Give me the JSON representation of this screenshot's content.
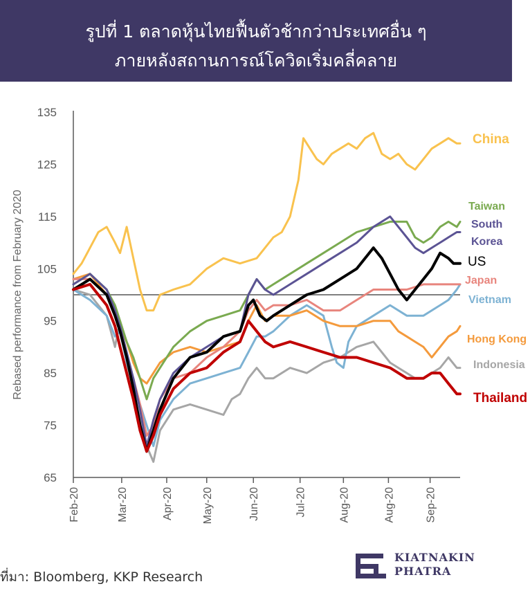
{
  "header": {
    "title_line1": "รูปที่ 1 ตลาดหุ้นไทยฟื้นตัวช้ากว่าประเทศอื่น ๆ",
    "title_line2": "ภายหลังสถานการณ์โควิดเริ่มคลี่คลาย"
  },
  "source": "ที่มา: Bloomberg, KKP Research",
  "logo": {
    "line1": "KIATNAKIN",
    "line2": "PHATRA"
  },
  "colors": {
    "header_bg": "#3f3865",
    "China": "#f9c24e",
    "Taiwan": "#7aaa50",
    "South Korea": "#5b5394",
    "US": "#000000",
    "Japan": "#e8857d",
    "Vietnam": "#7db2d3",
    "Hong Kong": "#f49a3c",
    "Indonesia": "#a6a6a6",
    "Thailand": "#c00000"
  },
  "chart_data": {
    "type": "line",
    "ylabel": "Rebased performance from February 2020",
    "xlabel": "",
    "ylim": [
      65,
      135
    ],
    "yticks": [
      65,
      75,
      85,
      95,
      105,
      115,
      125,
      135
    ],
    "xlim": [
      0,
      232
    ],
    "xticks": [
      {
        "x": 0,
        "label": "Feb-20"
      },
      {
        "x": 29,
        "label": "Mar-20"
      },
      {
        "x": 56,
        "label": "Apr-20"
      },
      {
        "x": 80,
        "label": "May-20"
      },
      {
        "x": 108,
        "label": "Jun-20"
      },
      {
        "x": 136,
        "label": "Jul-20"
      },
      {
        "x": 162,
        "label": "Aug-20"
      },
      {
        "x": 189,
        "label": "Aug-20"
      },
      {
        "x": 214,
        "label": "Sep-20"
      }
    ],
    "reference_line": 100,
    "grid": false,
    "legend": "right, labels at line ends",
    "series": [
      {
        "name": "Indonesia",
        "label_lines": [
          "Indonesia"
        ],
        "x": [
          0,
          10,
          20,
          25,
          28,
          32,
          36,
          40,
          44,
          48,
          52,
          60,
          70,
          80,
          90,
          95,
          100,
          105,
          110,
          115,
          120,
          130,
          140,
          150,
          160,
          170,
          180,
          185,
          190,
          195,
          200,
          205,
          210,
          215,
          220,
          225,
          230,
          232
        ],
        "y": [
          101,
          100,
          96,
          90,
          95,
          87,
          82,
          76,
          71,
          68,
          74,
          78,
          79,
          78,
          77,
          80,
          81,
          84,
          86,
          84,
          84,
          86,
          85,
          87,
          88,
          90,
          91,
          89,
          87,
          86,
          85,
          84,
          84,
          85,
          86,
          88,
          86,
          86
        ]
      },
      {
        "name": "Vietnam",
        "label_lines": [
          "Vietnam"
        ],
        "x": [
          0,
          10,
          20,
          25,
          28,
          32,
          36,
          40,
          44,
          48,
          52,
          60,
          70,
          80,
          90,
          100,
          105,
          110,
          115,
          120,
          130,
          140,
          150,
          155,
          158,
          162,
          165,
          170,
          180,
          190,
          200,
          210,
          220,
          225,
          230,
          232
        ],
        "y": [
          101,
          99,
          96,
          92,
          93,
          87,
          83,
          79,
          75,
          71,
          76,
          80,
          83,
          84,
          85,
          86,
          89,
          92,
          92,
          93,
          96,
          98,
          96,
          90,
          87,
          86,
          91,
          94,
          96,
          98,
          96,
          96,
          98,
          99,
          101,
          102
        ]
      },
      {
        "name": "Hong Kong",
        "label_lines": [
          "Hong Kong"
        ],
        "x": [
          0,
          10,
          20,
          25,
          28,
          32,
          36,
          40,
          44,
          48,
          52,
          60,
          70,
          80,
          90,
          100,
          105,
          110,
          115,
          120,
          130,
          140,
          150,
          160,
          170,
          180,
          190,
          195,
          200,
          205,
          210,
          215,
          220,
          225,
          230,
          232
        ],
        "y": [
          103,
          104,
          100,
          97,
          94,
          91,
          87,
          84,
          83,
          85,
          87,
          89,
          90,
          89,
          90,
          91,
          95,
          98,
          95,
          96,
          96,
          97,
          95,
          94,
          94,
          95,
          95,
          93,
          92,
          91,
          90,
          88,
          90,
          92,
          93,
          94
        ]
      },
      {
        "name": "Japan",
        "label_lines": [
          "Japan"
        ],
        "x": [
          0,
          10,
          20,
          25,
          28,
          32,
          36,
          40,
          44,
          48,
          52,
          60,
          70,
          80,
          90,
          100,
          105,
          110,
          115,
          120,
          130,
          140,
          150,
          160,
          170,
          180,
          190,
          200,
          210,
          220,
          230,
          232
        ],
        "y": [
          103,
          103,
          100,
          97,
          93,
          88,
          84,
          79,
          73,
          75,
          80,
          84,
          85,
          88,
          90,
          93,
          97,
          99,
          97,
          98,
          98,
          99,
          97,
          97,
          99,
          101,
          101,
          101,
          102,
          102,
          102,
          102
        ]
      },
      {
        "name": "China",
        "label_lines": [
          "China"
        ],
        "x": [
          0,
          5,
          10,
          15,
          20,
          25,
          28,
          32,
          36,
          40,
          44,
          48,
          52,
          60,
          70,
          80,
          90,
          100,
          110,
          115,
          120,
          125,
          130,
          135,
          138,
          142,
          146,
          150,
          155,
          160,
          165,
          170,
          175,
          180,
          185,
          190,
          195,
          200,
          205,
          210,
          215,
          220,
          225,
          230,
          232
        ],
        "y": [
          104,
          106,
          109,
          112,
          113,
          110,
          108,
          113,
          107,
          101,
          97,
          97,
          100,
          101,
          102,
          105,
          107,
          106,
          107,
          109,
          111,
          112,
          115,
          122,
          130,
          128,
          126,
          125,
          127,
          128,
          129,
          128,
          130,
          131,
          127,
          126,
          127,
          125,
          124,
          126,
          128,
          129,
          130,
          129,
          129
        ]
      },
      {
        "name": "Taiwan",
        "label_lines": [
          "Taiwan"
        ],
        "x": [
          0,
          10,
          20,
          25,
          28,
          32,
          36,
          40,
          44,
          48,
          52,
          60,
          70,
          80,
          90,
          100,
          105,
          110,
          115,
          120,
          130,
          140,
          150,
          160,
          170,
          180,
          190,
          200,
          205,
          210,
          215,
          220,
          225,
          230,
          232
        ],
        "y": [
          102,
          104,
          101,
          98,
          95,
          91,
          88,
          84,
          80,
          84,
          86,
          90,
          93,
          95,
          96,
          97,
          100,
          103,
          101,
          102,
          104,
          106,
          108,
          110,
          112,
          113,
          114,
          114,
          111,
          110,
          111,
          113,
          114,
          113,
          114
        ]
      },
      {
        "name": "South Korea",
        "label_lines": [
          "South",
          "Korea"
        ],
        "x": [
          0,
          10,
          20,
          25,
          28,
          32,
          36,
          40,
          44,
          48,
          52,
          60,
          70,
          80,
          90,
          100,
          105,
          110,
          115,
          120,
          130,
          140,
          150,
          160,
          170,
          180,
          190,
          195,
          200,
          205,
          210,
          215,
          220,
          225,
          230,
          232
        ],
        "y": [
          102,
          104,
          101,
          97,
          94,
          89,
          84,
          78,
          71,
          76,
          80,
          85,
          88,
          90,
          92,
          93,
          100,
          103,
          101,
          100,
          102,
          104,
          106,
          108,
          110,
          113,
          115,
          113,
          111,
          109,
          108,
          109,
          110,
          111,
          112,
          112
        ]
      },
      {
        "name": "US",
        "label_lines": [
          "US"
        ],
        "x": [
          0,
          10,
          20,
          25,
          28,
          32,
          36,
          40,
          44,
          48,
          52,
          60,
          70,
          80,
          90,
          100,
          105,
          108,
          112,
          116,
          120,
          130,
          140,
          150,
          160,
          170,
          180,
          185,
          190,
          195,
          200,
          205,
          210,
          215,
          220,
          225,
          228,
          232
        ],
        "y": [
          101,
          103,
          100,
          96,
          93,
          88,
          82,
          75,
          70,
          74,
          78,
          84,
          88,
          89,
          92,
          93,
          98,
          99,
          96,
          95,
          96,
          98,
          100,
          101,
          103,
          105,
          109,
          107,
          104,
          101,
          99,
          101,
          103,
          105,
          108,
          107,
          106,
          106
        ]
      },
      {
        "name": "Thailand",
        "label_lines": [
          "Thailand"
        ],
        "x": [
          0,
          10,
          20,
          25,
          28,
          32,
          36,
          40,
          44,
          48,
          52,
          60,
          70,
          80,
          90,
          100,
          105,
          110,
          115,
          120,
          130,
          140,
          150,
          160,
          170,
          180,
          190,
          195,
          200,
          205,
          210,
          215,
          220,
          225,
          230,
          232
        ],
        "y": [
          101,
          102,
          98,
          94,
          90,
          85,
          80,
          74,
          70,
          73,
          77,
          82,
          85,
          86,
          89,
          91,
          95,
          93,
          91,
          90,
          91,
          90,
          89,
          88,
          88,
          87,
          86,
          85,
          84,
          84,
          84,
          85,
          85,
          83,
          81,
          81
        ]
      }
    ]
  }
}
